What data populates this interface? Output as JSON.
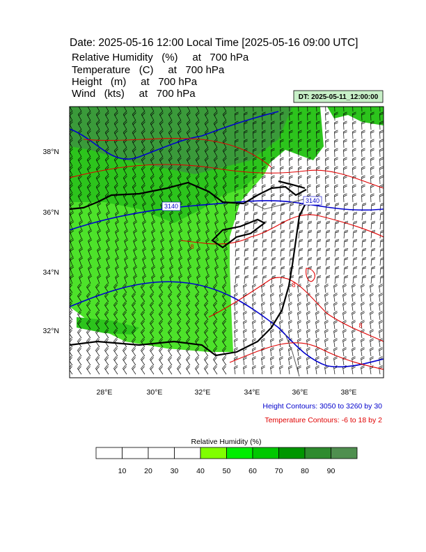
{
  "header": {
    "title": "Date: 2025-05-16  12:00 Local Time [2025-05-16  09:00 UTC]",
    "lines": [
      "Relative Humidity   (%)     at   700 hPa",
      "Temperature   (C)     at   700 hPa",
      "Height   (m)     at   700 hPa",
      "Wind   (kts)     at   700 hPa"
    ]
  },
  "dt_label": "DT: 2025-05-11_12:00:00",
  "map": {
    "lat_ticks": [
      "38°N",
      "36°N",
      "34°N",
      "32°N"
    ],
    "lon_ticks": [
      "28°E",
      "30°E",
      "32°E",
      "34°E",
      "36°E",
      "38°E"
    ],
    "height_labels": [
      "3140",
      "3140"
    ],
    "temperature_labels": [
      "8",
      "8",
      "8"
    ]
  },
  "notes": {
    "height": "Height Contours: 3050 to 3260 by 30",
    "temperature": "Temperature Contours: -6 to 18 by 2"
  },
  "colorbar": {
    "title": "Relative Humidity  (%)",
    "labels": [
      "10",
      "20",
      "30",
      "40",
      "50",
      "60",
      "70",
      "80",
      "90"
    ],
    "colors": [
      "#ffffff",
      "#ffffff",
      "#ffffff",
      "#ffffff",
      "#80ff00",
      "#00ee00",
      "#00c800",
      "#009600",
      "#2e8b2e",
      "#4f8f4f"
    ]
  }
}
